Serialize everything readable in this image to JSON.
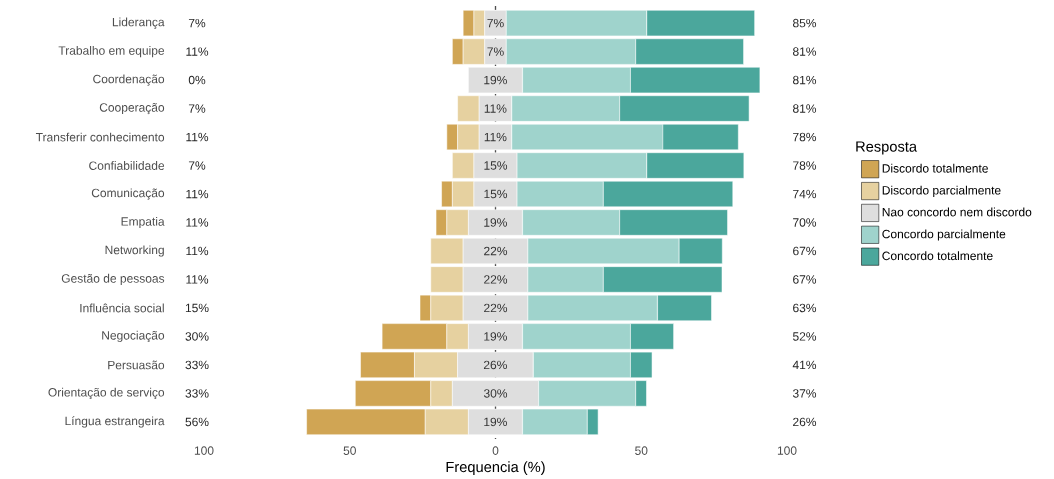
{
  "chart_data": {
    "type": "bar",
    "orientation": "horizontal",
    "xlabel": "Frequencia (%)",
    "legend_title": "Resposta",
    "legend": "right",
    "categories": [
      "Liderança",
      "Trabalho em equipe",
      "Coordenação",
      "Cooperação",
      "Transferir conhecimento",
      "Confiabilidade",
      "Comunicação",
      "Empatia",
      "Networking",
      "Gestão de pessoas",
      "Influência social",
      "Negociação",
      "Persuasão",
      "Orientação de serviço",
      "Língua estrangeira"
    ],
    "xlim": [
      -100,
      100
    ],
    "xticks": [
      {
        "value": -100,
        "label": "100"
      },
      {
        "value": -50,
        "label": "50"
      },
      0,
      50,
      100
    ],
    "ref_lines": [
      {
        "axis": "x",
        "value": 0,
        "line_style": "dashed",
        "color": "#4d4d4d"
      }
    ],
    "series": [
      {
        "name": "Discordo totalmente",
        "color": "#d0a554",
        "values": [
          3.7,
          3.7,
          0,
          0,
          3.7,
          0,
          3.7,
          3.7,
          0,
          0,
          3.7,
          22.2,
          18.5,
          25.9,
          40.7
        ],
        "base": [
          -11.1,
          -14.8,
          null,
          null,
          -16.7,
          null,
          -18.5,
          -20.4,
          null,
          null,
          -25.9,
          -38.9,
          -46.3,
          -48.1,
          -64.8
        ]
      },
      {
        "name": "Discordo parcialmente",
        "color": "#e6d1a0",
        "values": [
          3.7,
          7.4,
          0,
          7.4,
          7.4,
          7.4,
          7.4,
          7.4,
          11.1,
          11.1,
          11.1,
          7.4,
          14.8,
          7.4,
          14.8
        ],
        "base": [
          -7.4,
          -11.1,
          null,
          -13.0,
          -13.0,
          -14.8,
          -14.8,
          -16.7,
          -22.2,
          -22.2,
          -22.2,
          -16.7,
          -27.8,
          -22.2,
          -24.1
        ]
      },
      {
        "name": "Nao concordo nem discordo",
        "color": "#dedede",
        "values": [
          7.4,
          7.4,
          18.5,
          11.1,
          11.1,
          14.8,
          14.8,
          18.5,
          22.2,
          22.2,
          22.2,
          18.5,
          25.9,
          29.6,
          18.5
        ],
        "base": [
          -3.7,
          -3.7,
          -9.3,
          -5.6,
          -5.6,
          -7.4,
          -7.4,
          -9.3,
          -11.1,
          -11.1,
          -11.1,
          -9.3,
          -13.0,
          -14.8,
          -9.3
        ],
        "value_labels": [
          "7%",
          "7%",
          "19%",
          "11%",
          "11%",
          "15%",
          "15%",
          "19%",
          "22%",
          "22%",
          "22%",
          "19%",
          "26%",
          "30%",
          "19%"
        ]
      },
      {
        "name": "Concordo parcialmente",
        "color": "#9fd3cc",
        "values": [
          48.1,
          44.4,
          37.0,
          37.0,
          51.9,
          44.4,
          29.6,
          33.3,
          51.9,
          25.9,
          44.4,
          37.0,
          33.3,
          33.3,
          22.2
        ],
        "base": [
          3.7,
          3.7,
          9.3,
          5.6,
          5.6,
          7.4,
          7.4,
          9.3,
          11.1,
          11.1,
          11.1,
          9.3,
          13.0,
          14.8,
          9.3
        ]
      },
      {
        "name": "Concordo totalmente",
        "color": "#4ba79c",
        "values": [
          37.0,
          37.0,
          44.4,
          44.4,
          25.9,
          33.3,
          44.4,
          37.0,
          14.8,
          40.7,
          18.5,
          14.8,
          7.4,
          3.7,
          3.7
        ],
        "base": [
          51.9,
          48.1,
          46.3,
          42.6,
          57.4,
          51.9,
          37.0,
          42.6,
          63.0,
          37.0,
          55.6,
          46.3,
          46.3,
          48.1,
          31.5
        ]
      }
    ],
    "annotations": [
      "7%",
      "85%",
      "11%",
      "81%",
      "0%",
      "81%",
      "7%",
      "81%",
      "11%",
      "78%",
      "7%",
      "78%",
      "11%",
      "74%",
      "11%",
      "70%",
      "11%",
      "67%",
      "11%",
      "67%",
      "15%",
      "63%",
      "30%",
      "52%",
      "33%",
      "41%",
      "33%",
      "37%",
      "56%",
      "26%"
    ]
  }
}
